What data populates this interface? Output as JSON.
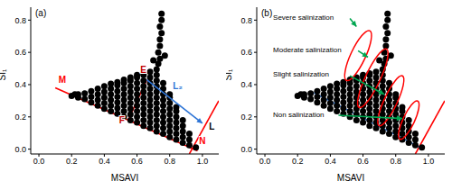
{
  "chart_data": [
    {
      "type": "scatter",
      "title": "(a)",
      "x_label": "MSAVI",
      "y_label": "SI₁",
      "color": "#000000",
      "marker": "circle",
      "grid": false,
      "xlim": [
        -0.05,
        1.1
      ],
      "ylim": [
        -0.03,
        0.88
      ],
      "xticks": [
        {
          "value": 0,
          "label": "0.0"
        },
        {
          "value": 0.2,
          "label": "0.2"
        },
        {
          "value": 0.4,
          "label": "0.4"
        },
        {
          "value": 0.6,
          "label": "0.6"
        },
        {
          "value": 0.8,
          "label": "0.8"
        },
        {
          "value": 1,
          "label": "1.0"
        }
      ],
      "yticks": [
        {
          "value": 0,
          "label": "0.0"
        },
        {
          "value": 0.2,
          "label": "0.2"
        },
        {
          "value": 0.4,
          "label": "0.4"
        },
        {
          "value": 0.6,
          "label": "0.6"
        },
        {
          "value": 0.8,
          "label": "0.8"
        }
      ],
      "x": [
        0.24,
        0.24,
        0.28,
        0.28,
        0.32,
        0.32,
        0.32,
        0.36,
        0.36,
        0.36,
        0.36,
        0.4,
        0.4,
        0.4,
        0.4,
        0.4,
        0.44,
        0.44,
        0.44,
        0.44,
        0.44,
        0.44,
        0.48,
        0.48,
        0.48,
        0.48,
        0.48,
        0.48,
        0.48,
        0.52,
        0.52,
        0.52,
        0.52,
        0.52,
        0.52,
        0.52,
        0.52,
        0.56,
        0.56,
        0.56,
        0.56,
        0.56,
        0.56,
        0.56,
        0.56,
        0.56,
        0.6,
        0.6,
        0.6,
        0.6,
        0.6,
        0.6,
        0.6,
        0.6,
        0.6,
        0.6,
        0.64,
        0.64,
        0.64,
        0.64,
        0.64,
        0.64,
        0.64,
        0.64,
        0.64,
        0.64,
        0.64,
        0.68,
        0.68,
        0.68,
        0.68,
        0.68,
        0.68,
        0.68,
        0.68,
        0.68,
        0.68,
        0.68,
        0.72,
        0.72,
        0.72,
        0.72,
        0.72,
        0.72,
        0.72,
        0.72,
        0.72,
        0.72,
        0.72,
        0.72,
        0.76,
        0.76,
        0.76,
        0.76,
        0.76,
        0.76,
        0.76,
        0.76,
        0.76,
        0.76,
        0.8,
        0.8,
        0.8,
        0.8,
        0.8,
        0.8,
        0.8,
        0.8,
        0.8,
        0.84,
        0.84,
        0.84,
        0.84,
        0.84,
        0.84,
        0.84,
        0.88,
        0.88,
        0.88,
        0.88,
        0.88,
        0.92,
        0.92,
        0.92,
        0.96,
        0.73,
        0.74,
        0.73,
        0.74,
        0.74,
        0.75,
        0.74,
        0.75,
        0.75,
        0.7,
        0.77,
        0.2,
        0.22
      ],
      "y": [
        0.32,
        0.34,
        0.31,
        0.345,
        0.29,
        0.325,
        0.36,
        0.27,
        0.305,
        0.34,
        0.375,
        0.25,
        0.285,
        0.32,
        0.355,
        0.39,
        0.235,
        0.27,
        0.305,
        0.34,
        0.375,
        0.405,
        0.22,
        0.255,
        0.29,
        0.325,
        0.36,
        0.395,
        0.415,
        0.2,
        0.235,
        0.27,
        0.305,
        0.34,
        0.375,
        0.41,
        0.43,
        0.18,
        0.215,
        0.25,
        0.285,
        0.32,
        0.355,
        0.39,
        0.425,
        0.445,
        0.165,
        0.2,
        0.235,
        0.27,
        0.305,
        0.34,
        0.375,
        0.41,
        0.445,
        0.46,
        0.145,
        0.18,
        0.215,
        0.25,
        0.285,
        0.32,
        0.355,
        0.39,
        0.425,
        0.46,
        0.47,
        0.13,
        0.165,
        0.2,
        0.235,
        0.27,
        0.305,
        0.34,
        0.375,
        0.41,
        0.445,
        0.48,
        0.11,
        0.145,
        0.18,
        0.215,
        0.25,
        0.285,
        0.32,
        0.355,
        0.39,
        0.425,
        0.46,
        0.495,
        0.095,
        0.13,
        0.165,
        0.2,
        0.235,
        0.27,
        0.305,
        0.34,
        0.375,
        0.41,
        0.075,
        0.11,
        0.145,
        0.18,
        0.215,
        0.25,
        0.285,
        0.32,
        0.34,
        0.06,
        0.095,
        0.13,
        0.165,
        0.2,
        0.235,
        0.26,
        0.04,
        0.075,
        0.11,
        0.145,
        0.18,
        0.025,
        0.06,
        0.095,
        0.01,
        0.53,
        0.56,
        0.6,
        0.64,
        0.68,
        0.72,
        0.76,
        0.8,
        0.84,
        0.55,
        0.58,
        0.33,
        0.34
      ],
      "lines": [
        {
          "x": [
            0.92,
            1.1
          ],
          "y": [
            -0.03,
            0.3
          ],
          "color": "#ff0000",
          "line_style": "solid"
        },
        {
          "x": [
            0.1,
            0.97
          ],
          "y": [
            0.38,
            -0.01
          ],
          "color": "#ff0000",
          "line_style": "solid"
        },
        {
          "x": [
            0.66,
            0.546
          ],
          "y": [
            0.43,
            0.18
          ],
          "color": "#ff0000",
          "line_style": "solid"
        },
        {
          "x": [
            0.66,
            1.0
          ],
          "y": [
            0.43,
            0.16
          ],
          "color": "#2e75d6",
          "line_style": "arrow"
        }
      ],
      "annotations": [
        {
          "text": "M",
          "x": 0.12,
          "y": 0.41,
          "color": "#ff0000"
        },
        {
          "text": "N",
          "x": 0.98,
          "y": 0.03,
          "color": "#ff0000"
        },
        {
          "text": "E",
          "x": 0.62,
          "y": 0.47,
          "color": "#c00000"
        },
        {
          "text": "F",
          "x": 0.49,
          "y": 0.16,
          "color": "#c00000"
        },
        {
          "text": "L₂",
          "x": 0.82,
          "y": 0.37,
          "color": "#2e75d6"
        },
        {
          "text": "L",
          "x": 1.04,
          "y": 0.12,
          "color": "#000000"
        }
      ],
      "ellipses": []
    },
    {
      "type": "scatter",
      "title": "(b)",
      "x_label": "MSAVI",
      "y_label": "SI₁",
      "color": "#000000",
      "marker": "circle",
      "grid": false,
      "xlim": [
        -0.05,
        1.1
      ],
      "ylim": [
        -0.03,
        0.88
      ],
      "xticks": [
        {
          "value": 0,
          "label": "0.0"
        },
        {
          "value": 0.2,
          "label": "0.2"
        },
        {
          "value": 0.4,
          "label": "0.4"
        },
        {
          "value": 0.6,
          "label": "0.6"
        },
        {
          "value": 0.8,
          "label": "0.8"
        },
        {
          "value": 1,
          "label": "1.0"
        }
      ],
      "yticks": [
        {
          "value": 0,
          "label": "0.0"
        },
        {
          "value": 0.2,
          "label": "0.2"
        },
        {
          "value": 0.4,
          "label": "0.4"
        },
        {
          "value": 0.6,
          "label": "0.6"
        },
        {
          "value": 0.8,
          "label": "0.8"
        }
      ],
      "x": [
        0.24,
        0.24,
        0.28,
        0.28,
        0.32,
        0.32,
        0.32,
        0.36,
        0.36,
        0.36,
        0.36,
        0.4,
        0.4,
        0.4,
        0.4,
        0.4,
        0.44,
        0.44,
        0.44,
        0.44,
        0.44,
        0.44,
        0.48,
        0.48,
        0.48,
        0.48,
        0.48,
        0.48,
        0.48,
        0.52,
        0.52,
        0.52,
        0.52,
        0.52,
        0.52,
        0.52,
        0.52,
        0.56,
        0.56,
        0.56,
        0.56,
        0.56,
        0.56,
        0.56,
        0.56,
        0.56,
        0.6,
        0.6,
        0.6,
        0.6,
        0.6,
        0.6,
        0.6,
        0.6,
        0.6,
        0.6,
        0.64,
        0.64,
        0.64,
        0.64,
        0.64,
        0.64,
        0.64,
        0.64,
        0.64,
        0.64,
        0.64,
        0.68,
        0.68,
        0.68,
        0.68,
        0.68,
        0.68,
        0.68,
        0.68,
        0.68,
        0.68,
        0.68,
        0.72,
        0.72,
        0.72,
        0.72,
        0.72,
        0.72,
        0.72,
        0.72,
        0.72,
        0.72,
        0.72,
        0.72,
        0.76,
        0.76,
        0.76,
        0.76,
        0.76,
        0.76,
        0.76,
        0.76,
        0.76,
        0.76,
        0.8,
        0.8,
        0.8,
        0.8,
        0.8,
        0.8,
        0.8,
        0.8,
        0.8,
        0.84,
        0.84,
        0.84,
        0.84,
        0.84,
        0.84,
        0.84,
        0.88,
        0.88,
        0.88,
        0.88,
        0.88,
        0.92,
        0.92,
        0.92,
        0.96,
        0.73,
        0.74,
        0.73,
        0.74,
        0.74,
        0.75,
        0.74,
        0.75,
        0.75,
        0.7,
        0.77,
        0.2,
        0.22
      ],
      "y": [
        0.32,
        0.34,
        0.31,
        0.345,
        0.29,
        0.325,
        0.36,
        0.27,
        0.305,
        0.34,
        0.375,
        0.25,
        0.285,
        0.32,
        0.355,
        0.39,
        0.235,
        0.27,
        0.305,
        0.34,
        0.375,
        0.405,
        0.22,
        0.255,
        0.29,
        0.325,
        0.36,
        0.395,
        0.415,
        0.2,
        0.235,
        0.27,
        0.305,
        0.34,
        0.375,
        0.41,
        0.43,
        0.18,
        0.215,
        0.25,
        0.285,
        0.32,
        0.355,
        0.39,
        0.425,
        0.445,
        0.165,
        0.2,
        0.235,
        0.27,
        0.305,
        0.34,
        0.375,
        0.41,
        0.445,
        0.46,
        0.145,
        0.18,
        0.215,
        0.25,
        0.285,
        0.32,
        0.355,
        0.39,
        0.425,
        0.46,
        0.47,
        0.13,
        0.165,
        0.2,
        0.235,
        0.27,
        0.305,
        0.34,
        0.375,
        0.41,
        0.445,
        0.48,
        0.11,
        0.145,
        0.18,
        0.215,
        0.25,
        0.285,
        0.32,
        0.355,
        0.39,
        0.425,
        0.46,
        0.495,
        0.095,
        0.13,
        0.165,
        0.2,
        0.235,
        0.27,
        0.305,
        0.34,
        0.375,
        0.41,
        0.075,
        0.11,
        0.145,
        0.18,
        0.215,
        0.25,
        0.285,
        0.32,
        0.34,
        0.06,
        0.095,
        0.13,
        0.165,
        0.2,
        0.235,
        0.26,
        0.04,
        0.075,
        0.11,
        0.145,
        0.18,
        0.025,
        0.06,
        0.095,
        0.01,
        0.53,
        0.56,
        0.6,
        0.64,
        0.68,
        0.72,
        0.76,
        0.8,
        0.84,
        0.55,
        0.58,
        0.33,
        0.34
      ],
      "lines": [
        {
          "x": [
            0.92,
            1.1
          ],
          "y": [
            -0.03,
            0.3
          ],
          "color": "#ff0000",
          "line_style": "solid"
        },
        {
          "x": [
            0.3,
            0.97
          ],
          "y": [
            0.35,
            0.0
          ],
          "color": "#2e75d6",
          "line_style": "solid"
        },
        {
          "x": [
            0.52,
            0.56
          ],
          "y": [
            0.81,
            0.76
          ],
          "color": "#00a650",
          "line_style": "arrow"
        },
        {
          "x": [
            0.57,
            0.63
          ],
          "y": [
            0.61,
            0.57
          ],
          "color": "#00a650",
          "line_style": "arrow"
        },
        {
          "x": [
            0.52,
            0.73
          ],
          "y": [
            0.455,
            0.34
          ],
          "color": "#00a650",
          "line_style": "arrow"
        },
        {
          "x": [
            0.45,
            0.84
          ],
          "y": [
            0.21,
            0.19
          ],
          "color": "#00a650",
          "line_style": "arrow"
        }
      ],
      "annotations": [
        {
          "text": "Severe salinization",
          "x": 0.05,
          "y": 0.8,
          "color": "#000000"
        },
        {
          "text": "Moderate salinization",
          "x": 0.05,
          "y": 0.6,
          "color": "#000000"
        },
        {
          "text": "Slight salinization",
          "x": 0.05,
          "y": 0.45,
          "color": "#000000"
        },
        {
          "text": "Non salinization",
          "x": 0.05,
          "y": 0.2,
          "color": "#000000"
        }
      ],
      "ellipses": [
        {
          "x": 0.57,
          "y": 0.58,
          "rx": 0.045,
          "ry": 0.17,
          "color": "#ff0000"
        },
        {
          "x": 0.66,
          "y": 0.44,
          "rx": 0.045,
          "ry": 0.2,
          "color": "#ff0000"
        },
        {
          "x": 0.77,
          "y": 0.3,
          "rx": 0.04,
          "ry": 0.17,
          "color": "#ff0000"
        },
        {
          "x": 0.88,
          "y": 0.18,
          "rx": 0.035,
          "ry": 0.13,
          "color": "#ff0000"
        }
      ]
    }
  ]
}
